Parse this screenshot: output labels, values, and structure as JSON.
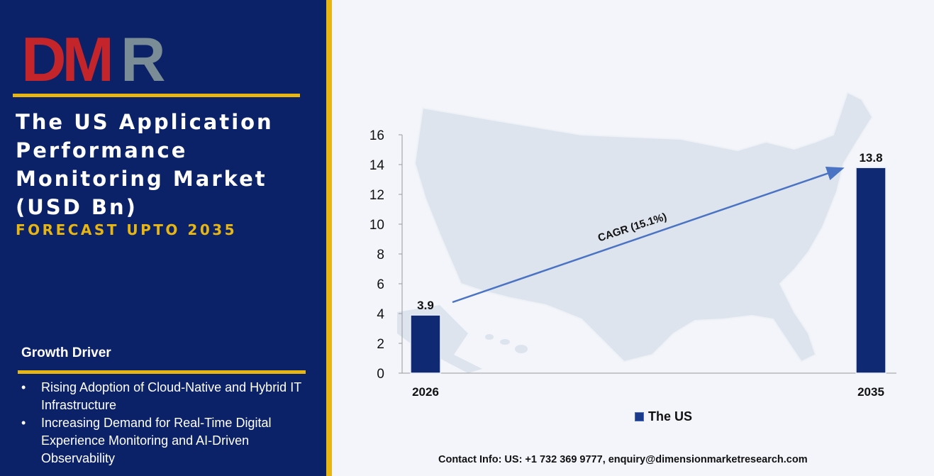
{
  "logo": {
    "text": "DMR",
    "colors": {
      "D": "#c3252b",
      "M": "#c3252b",
      "R": "#7a8d96"
    }
  },
  "left_panel": {
    "title": "The US Application Performance Monitoring Market (USD Bn)",
    "subtitle": "FORECAST UPTO 2035",
    "growth_driver": {
      "heading": "Growth Driver",
      "items": [
        "Rising Adoption of Cloud-Native and Hybrid IT Infrastructure",
        "Increasing Demand for Real-Time Digital Experience Monitoring and AI-Driven Observability"
      ]
    }
  },
  "colors": {
    "navy": "#0c2268",
    "gold": "#e8b612",
    "bar": "#0f2a73",
    "arrow": "#4a73c4",
    "map": "#dde4ee"
  },
  "chart_data": {
    "type": "bar",
    "categories": [
      "2026",
      "2035"
    ],
    "series": [
      {
        "name": "The US",
        "values": [
          3.9,
          13.8
        ]
      }
    ],
    "data_labels": [
      "3.9",
      "13.8"
    ],
    "ylim": [
      0,
      16
    ],
    "yticks": [
      0,
      2,
      4,
      6,
      8,
      10,
      12,
      14,
      16
    ],
    "annotation": "CAGR (15.1%)",
    "legend_position": "bottom",
    "grid": false
  },
  "legend_label": "The US",
  "contact": "Contact Info: US: +1 732 369 9777, enquiry@dimensionmarketresearch.com"
}
